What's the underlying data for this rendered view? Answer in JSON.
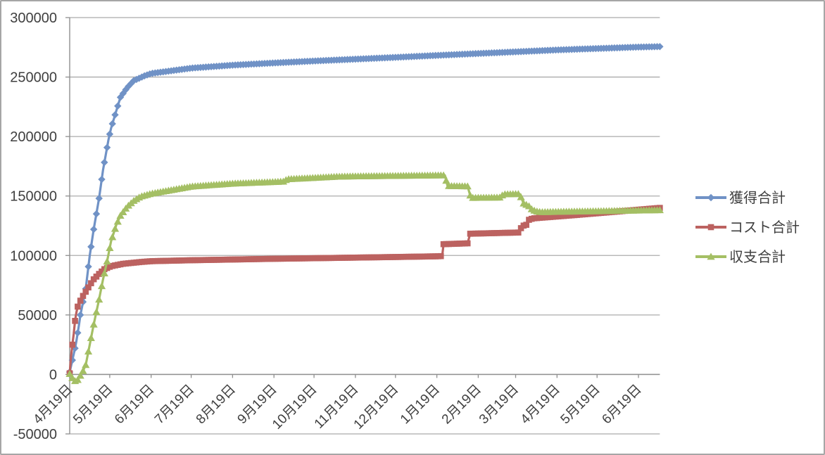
{
  "window": {
    "background": "#ffffff",
    "border_color": "#a6a6a6"
  },
  "chart_data": {
    "type": "line",
    "title": "",
    "grid": {
      "horizontal": true,
      "vertical": false,
      "color": "#ababab"
    },
    "axis_color": "#8f8f8f",
    "text_color": "#3f3f3f",
    "legend": {
      "position": "right",
      "items": [
        "獲得合計",
        "コスト合計",
        "収支合計"
      ]
    },
    "y_axis": {
      "min": -50000,
      "max": 300000,
      "step": 50000,
      "tick_values": [
        300000,
        250000,
        200000,
        150000,
        100000,
        50000,
        0,
        -50000
      ],
      "tick_labels": [
        "300000",
        "250000",
        "200000",
        "150000",
        "100000",
        "50000",
        "0",
        "-50000"
      ]
    },
    "x_axis": {
      "tick_labels": [
        "4月19日",
        "5月19日",
        "6月19日",
        "7月19日",
        "8月19日",
        "9月19日",
        "10月19日",
        "11月19日",
        "12月19日",
        "1月19日",
        "2月19日",
        "3月19日",
        "4月19日",
        "5月19日",
        "6月19日"
      ],
      "tick_days": [
        0,
        30,
        61,
        91,
        122,
        153,
        183,
        214,
        244,
        275,
        306,
        334,
        365,
        395,
        426
      ],
      "axis_span_days": 426,
      "data_end_day": 442
    },
    "series": [
      {
        "name": "獲得合計",
        "key": "acquired-total",
        "color": "#7092c6",
        "marker": "diamond",
        "points": [
          [
            0,
            2000
          ],
          [
            1,
            7000
          ],
          [
            2,
            12000
          ],
          [
            3,
            17000
          ],
          [
            4,
            22000
          ],
          [
            5,
            28000
          ],
          [
            6,
            35000
          ],
          [
            7,
            42000
          ],
          [
            8,
            50000
          ],
          [
            10,
            61000
          ],
          [
            12,
            72000
          ],
          [
            15,
            100000
          ],
          [
            18,
            122000
          ],
          [
            22,
            148000
          ],
          [
            25,
            172000
          ],
          [
            29,
            197000
          ],
          [
            31,
            207000
          ],
          [
            35,
            222000
          ],
          [
            38,
            233000
          ],
          [
            43,
            241000
          ],
          [
            48,
            247000
          ],
          [
            56,
            251000
          ],
          [
            61,
            253000
          ],
          [
            91,
            257500
          ],
          [
            122,
            260000
          ],
          [
            152,
            261800
          ],
          [
            183,
            263500
          ],
          [
            213,
            265000
          ],
          [
            243,
            266500
          ],
          [
            275,
            268200
          ],
          [
            306,
            269800
          ],
          [
            334,
            271200
          ],
          [
            365,
            272800
          ],
          [
            395,
            274000
          ],
          [
            426,
            275200
          ],
          [
            442,
            275600
          ]
        ]
      },
      {
        "name": "コスト合計",
        "key": "cost-total",
        "color": "#bc6260",
        "marker": "square",
        "points": [
          [
            0,
            1000
          ],
          [
            1,
            15000
          ],
          [
            2,
            25000
          ],
          [
            3,
            34000
          ],
          [
            4,
            45000
          ],
          [
            5,
            52000
          ],
          [
            6,
            57000
          ],
          [
            7,
            60000
          ],
          [
            8,
            62000
          ],
          [
            10,
            66000
          ],
          [
            12,
            69500
          ],
          [
            15,
            75000
          ],
          [
            18,
            80000
          ],
          [
            22,
            84500
          ],
          [
            26,
            88500
          ],
          [
            31,
            91000
          ],
          [
            40,
            93000
          ],
          [
            53,
            94500
          ],
          [
            61,
            95200
          ],
          [
            91,
            96000
          ],
          [
            122,
            96600
          ],
          [
            152,
            97200
          ],
          [
            183,
            97700
          ],
          [
            213,
            98200
          ],
          [
            243,
            98700
          ],
          [
            275,
            99300
          ],
          [
            279,
            99500
          ],
          [
            280,
            109500
          ],
          [
            298,
            110200
          ],
          [
            300,
            118300
          ],
          [
            336,
            119300
          ],
          [
            339,
            124800
          ],
          [
            342,
            125800
          ],
          [
            344,
            130000
          ],
          [
            347,
            131200
          ],
          [
            363,
            132600
          ],
          [
            379,
            134000
          ],
          [
            395,
            135500
          ],
          [
            411,
            137000
          ],
          [
            426,
            138500
          ],
          [
            442,
            140000
          ]
        ]
      },
      {
        "name": "収支合計",
        "key": "balance-total",
        "color": "#a4bf64",
        "marker": "triangle",
        "points": [
          [
            0,
            500
          ],
          [
            2,
            -3000
          ],
          [
            4,
            -5500
          ],
          [
            6,
            -4500
          ],
          [
            8,
            -1000
          ],
          [
            10,
            3000
          ],
          [
            12,
            8000
          ],
          [
            15,
            25000
          ],
          [
            18,
            42000
          ],
          [
            22,
            63000
          ],
          [
            25,
            80000
          ],
          [
            28,
            95000
          ],
          [
            31,
            112000
          ],
          [
            35,
            126000
          ],
          [
            38,
            133500
          ],
          [
            43,
            141000
          ],
          [
            48,
            146000
          ],
          [
            53,
            149500
          ],
          [
            61,
            152000
          ],
          [
            91,
            158000
          ],
          [
            122,
            160500
          ],
          [
            152,
            161800
          ],
          [
            160,
            162200
          ],
          [
            163,
            164200
          ],
          [
            183,
            165300
          ],
          [
            200,
            166300
          ],
          [
            213,
            166600
          ],
          [
            243,
            167000
          ],
          [
            275,
            167400
          ],
          [
            281,
            167400
          ],
          [
            283,
            158500
          ],
          [
            298,
            158200
          ],
          [
            300,
            150500
          ],
          [
            302,
            148500
          ],
          [
            322,
            148800
          ],
          [
            325,
            151500
          ],
          [
            337,
            151800
          ],
          [
            340,
            143800
          ],
          [
            344,
            141500
          ],
          [
            346,
            139000
          ],
          [
            349,
            137200
          ],
          [
            353,
            136500
          ],
          [
            365,
            136800
          ],
          [
            395,
            137300
          ],
          [
            426,
            137900
          ],
          [
            442,
            138200
          ]
        ]
      }
    ]
  }
}
